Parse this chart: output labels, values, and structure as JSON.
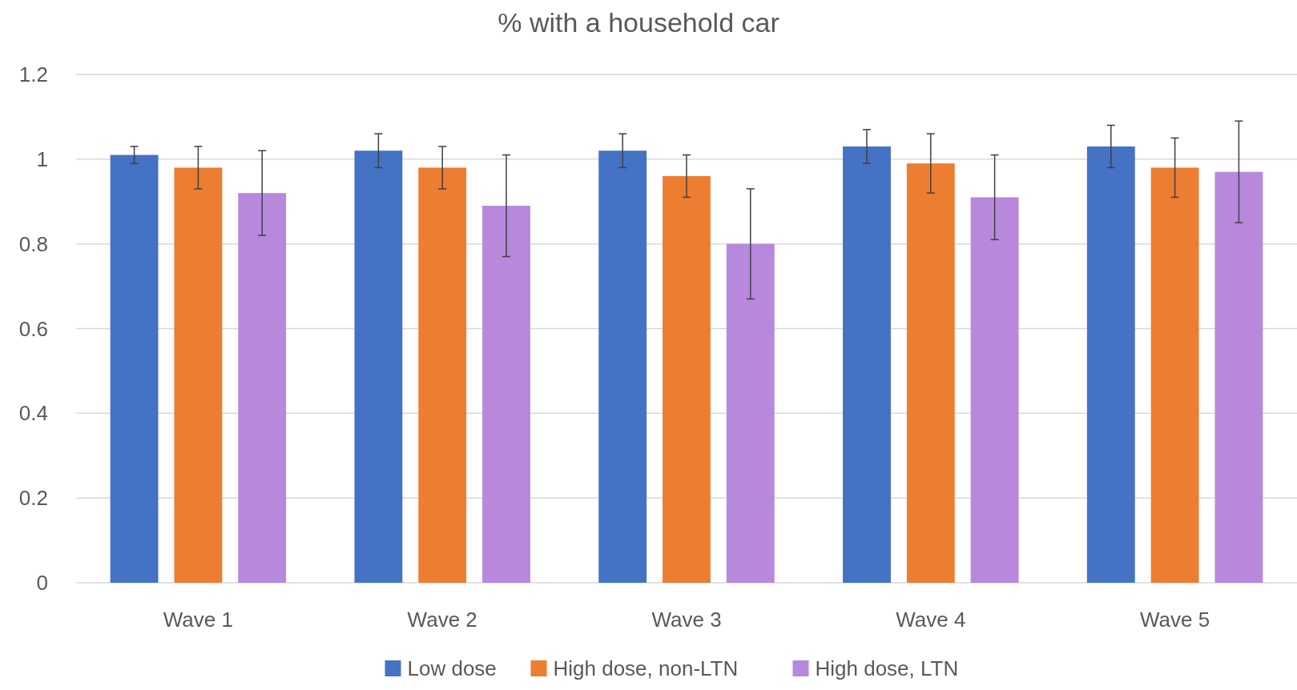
{
  "chart_data": {
    "type": "bar",
    "title": "% with a household car",
    "categories": [
      "Wave 1",
      "Wave 2",
      "Wave 3",
      "Wave 4",
      "Wave 5"
    ],
    "series": [
      {
        "name": "Low dose",
        "color": "#4472c4",
        "values": [
          1.01,
          1.02,
          1.02,
          1.03,
          1.03
        ],
        "errors": [
          [
            0.99,
            1.03
          ],
          [
            0.98,
            1.06
          ],
          [
            0.98,
            1.06
          ],
          [
            0.99,
            1.07
          ],
          [
            0.98,
            1.08
          ]
        ]
      },
      {
        "name": "High dose, non-LTN",
        "color": "#ed7d31",
        "values": [
          0.98,
          0.98,
          0.96,
          0.99,
          0.98
        ],
        "errors": [
          [
            0.93,
            1.03
          ],
          [
            0.93,
            1.03
          ],
          [
            0.91,
            1.01
          ],
          [
            0.92,
            1.06
          ],
          [
            0.91,
            1.05
          ]
        ]
      },
      {
        "name": "High dose, LTN",
        "color": "#b888dc",
        "values": [
          0.92,
          0.89,
          0.8,
          0.91,
          0.97
        ],
        "errors": [
          [
            0.82,
            1.02
          ],
          [
            0.77,
            1.01
          ],
          [
            0.67,
            0.93
          ],
          [
            0.81,
            1.01
          ],
          [
            0.85,
            1.09
          ]
        ]
      }
    ],
    "ylim": [
      0,
      1.2
    ],
    "yticks": [
      0,
      0.2,
      0.4,
      0.6,
      0.8,
      1,
      1.2
    ],
    "grid": "y",
    "legend": "bottom"
  }
}
